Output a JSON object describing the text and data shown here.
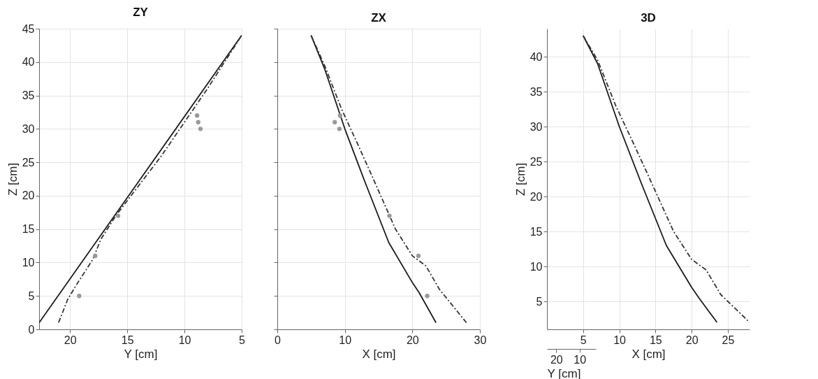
{
  "chart_data": [
    {
      "type": "line",
      "title": "ZY",
      "xlabel": "Y [cm]",
      "ylabel": "Z [cm]",
      "xlim": [
        22.7,
        5
      ],
      "xticks": [
        20,
        15,
        10,
        5
      ],
      "ylim": [
        0,
        45
      ],
      "yticks": [
        0,
        5,
        10,
        15,
        20,
        25,
        30,
        35,
        40,
        45
      ],
      "grid": true,
      "series": [
        {
          "type": "line",
          "color": "#1a1a1a",
          "line_style": "solid",
          "x": [
            22.7,
            5
          ],
          "values": [
            1,
            44
          ]
        },
        {
          "type": "line",
          "color": "#333333",
          "line_style": "dashed",
          "x": [
            21,
            20.2,
            19.5,
            18,
            17.3,
            16,
            12,
            8,
            6.5,
            5
          ],
          "values": [
            1,
            4.5,
            6.5,
            10.5,
            13.5,
            17,
            26,
            36,
            40,
            44
          ]
        },
        {
          "type": "scatter",
          "color": "#999999",
          "marker": "circle",
          "x": [
            19.2,
            17.8,
            15.8,
            8.9,
            8.8,
            8.6
          ],
          "values": [
            5,
            11,
            17,
            32,
            31,
            30
          ]
        }
      ]
    },
    {
      "type": "line",
      "title": "ZX",
      "xlabel": "X [cm]",
      "xlim": [
        0,
        30
      ],
      "xticks": [
        0,
        10,
        20,
        30
      ],
      "ylim": [
        0,
        45
      ],
      "yticks": [
        0,
        5,
        10,
        15,
        20,
        25,
        30,
        35,
        40,
        45
      ],
      "tick_labels": "x",
      "grid": true,
      "series": [
        {
          "type": "line",
          "color": "#1a1a1a",
          "line_style": "solid",
          "x": [
            5,
            7,
            10,
            13,
            16.5,
            20,
            21,
            23.5
          ],
          "values": [
            44,
            39,
            30,
            22,
            13,
            7,
            5.5,
            1
          ]
        },
        {
          "type": "line",
          "color": "#333333",
          "line_style": "dashed",
          "x": [
            5,
            7,
            9.5,
            12,
            14,
            17.5,
            20,
            22,
            24,
            28
          ],
          "values": [
            44,
            39.5,
            33,
            27.5,
            23,
            15,
            11,
            9.5,
            6,
            1
          ]
        },
        {
          "type": "scatter",
          "color": "#999999",
          "marker": "circle",
          "x": [
            9.3,
            8.5,
            9.2,
            16.6,
            20.9,
            22.2
          ],
          "values": [
            32,
            31,
            30,
            17,
            11,
            5
          ]
        }
      ]
    },
    {
      "type": "line",
      "title": "3D",
      "xlabel": "X [cm]",
      "ylabel": "Z [cm]",
      "xlim": [
        0,
        28
      ],
      "xticks": [
        5,
        10,
        15,
        20,
        25
      ],
      "x2label": "Y [cm]",
      "x2lim": [
        24,
        3
      ],
      "x2ticks": [
        20,
        10
      ],
      "ylim": [
        1,
        44
      ],
      "yticks": [
        5,
        10,
        15,
        20,
        25,
        30,
        35,
        40
      ],
      "grid": true,
      "series": [
        {
          "type": "line",
          "color": "#1a1a1a",
          "line_style": "solid",
          "x": [
            5,
            7,
            10,
            13,
            16.5,
            20,
            21,
            23.5
          ],
          "values": [
            43,
            39,
            30,
            22,
            13,
            7,
            5.5,
            2
          ]
        },
        {
          "type": "line",
          "color": "#333333",
          "line_style": "dashed",
          "x": [
            5,
            7,
            9.5,
            12,
            14,
            17.5,
            20,
            22,
            24,
            28
          ],
          "values": [
            43,
            39.5,
            33,
            27.5,
            23,
            15,
            11,
            9.5,
            6,
            2
          ]
        }
      ]
    }
  ]
}
